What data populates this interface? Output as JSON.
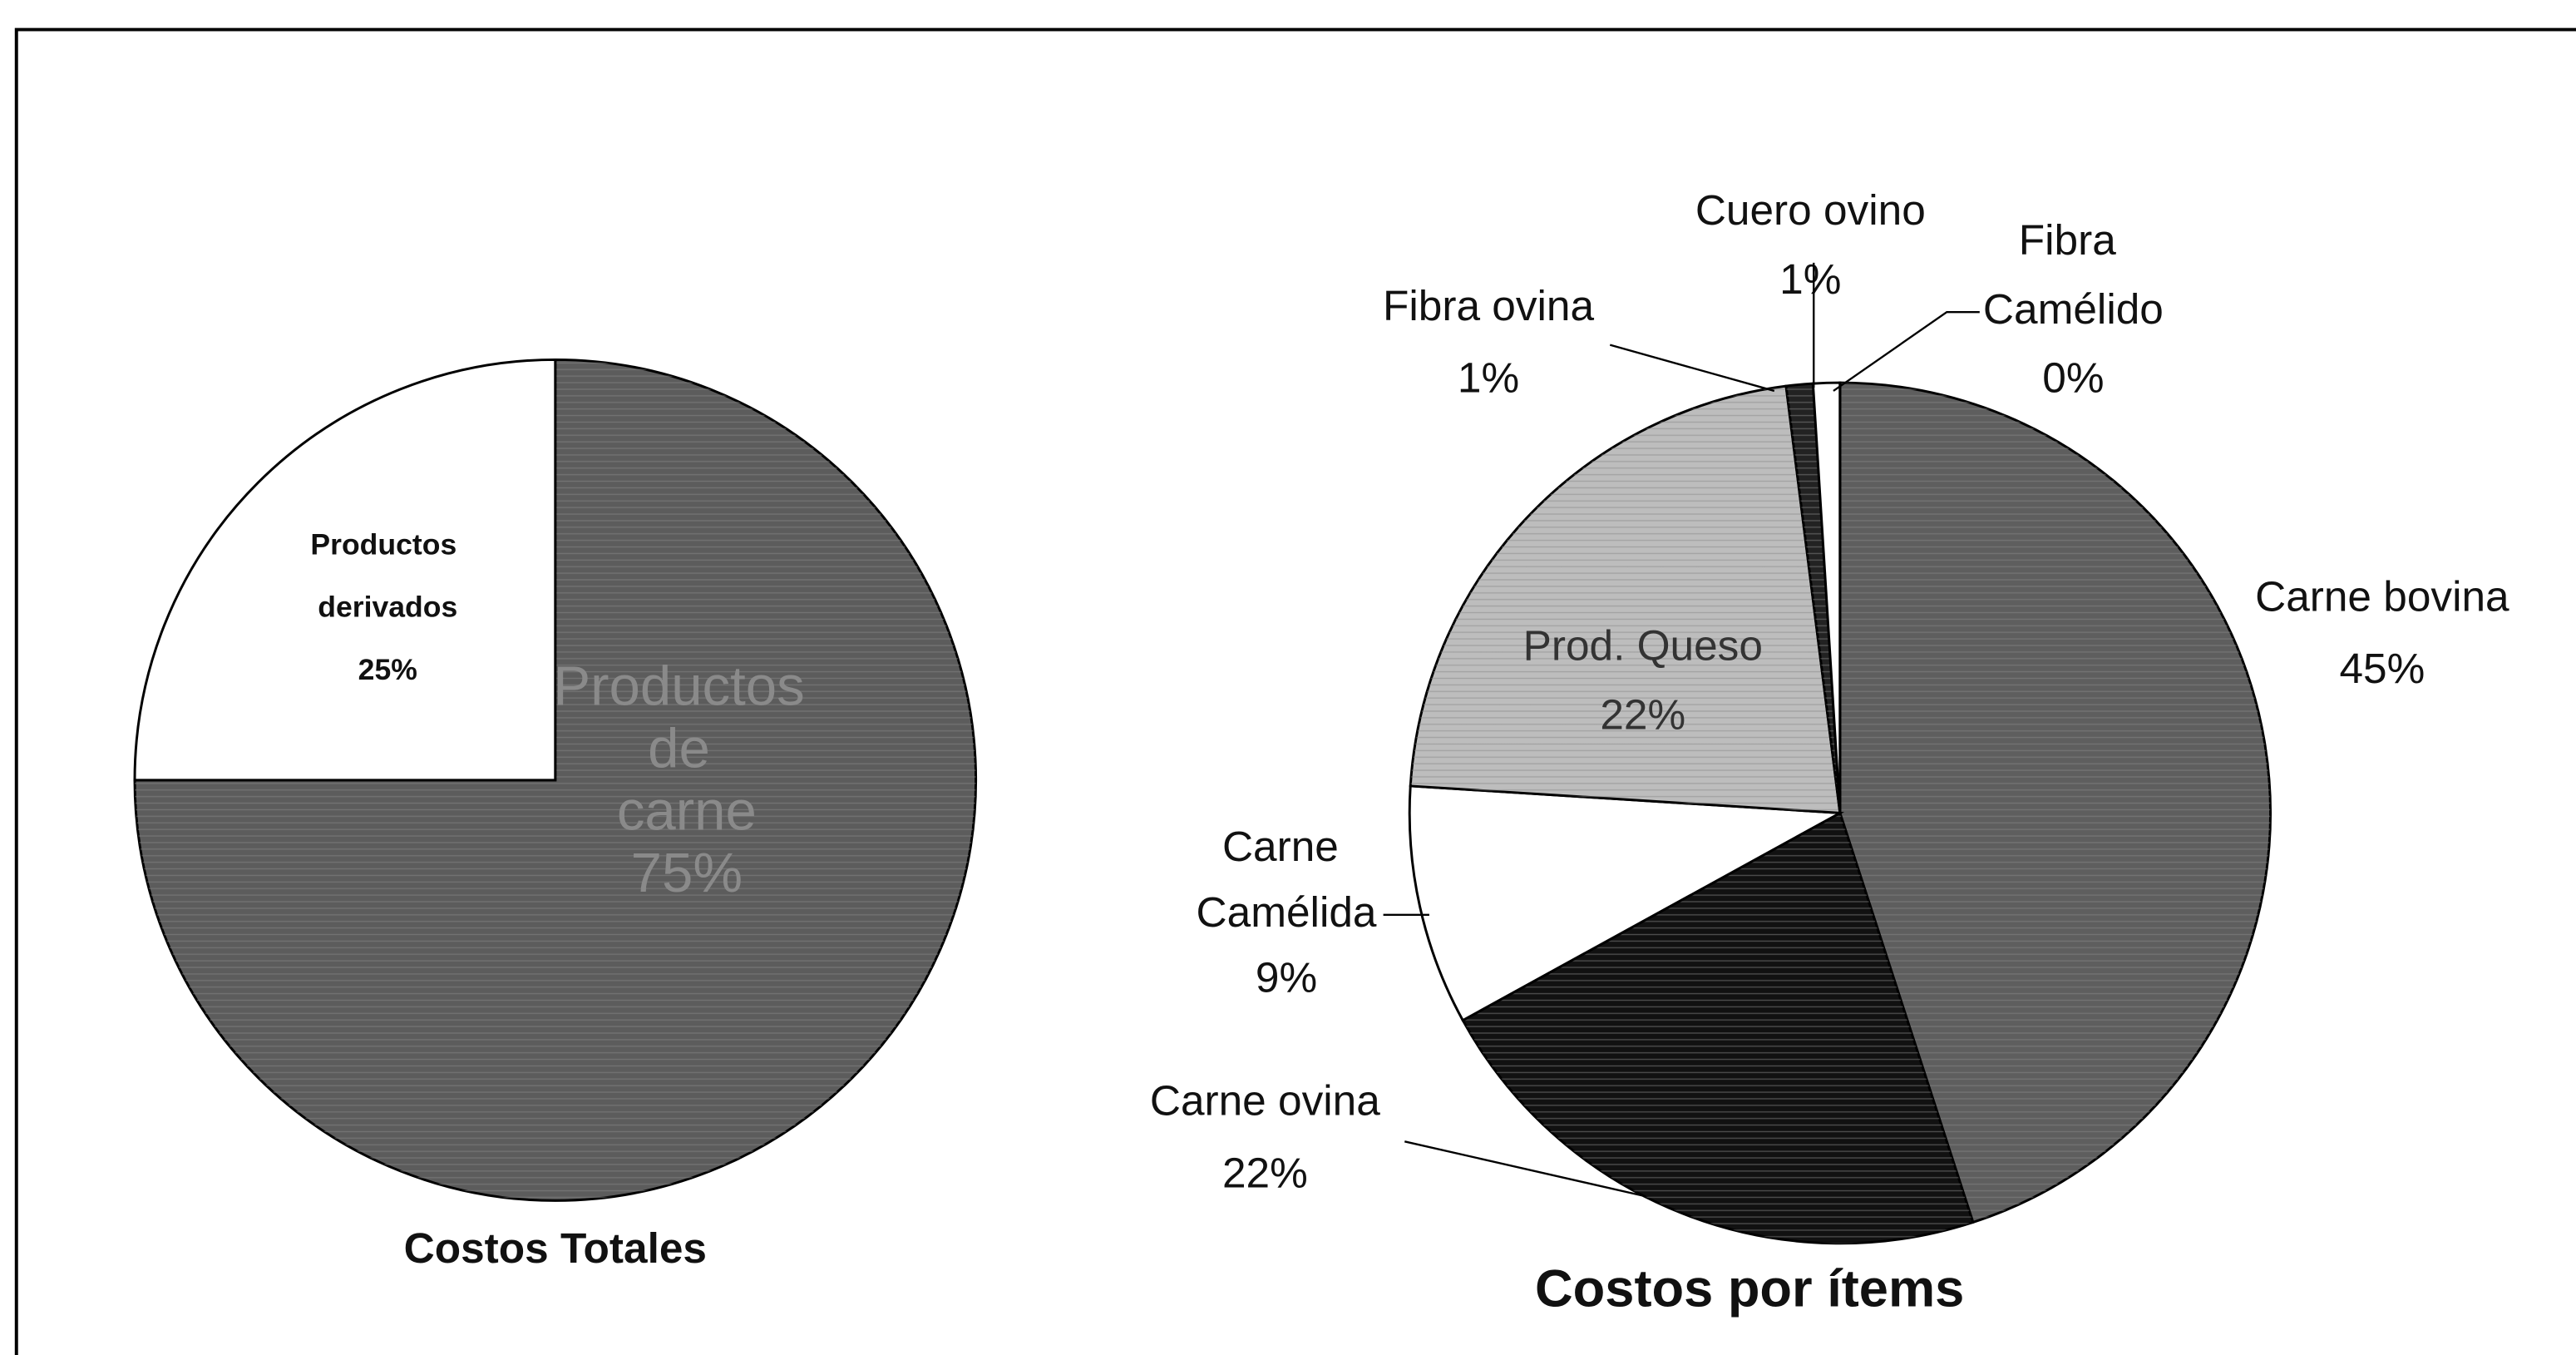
{
  "chart_data": [
    {
      "type": "pie",
      "title": "Costos Totales",
      "categories": [
        "Productos de carne",
        "Productos derivados"
      ],
      "values": [
        75,
        25
      ],
      "value_labels": [
        "75%",
        "25%"
      ],
      "colors": [
        "#5c5c5c",
        "#ffffff"
      ]
    },
    {
      "type": "pie",
      "title": "Costos por ítems",
      "categories": [
        "Carne bovina",
        "Carne ovina",
        "Carne Camélida",
        "Prod. Queso",
        "Fibra ovina",
        "Cuero ovino",
        "Fibra Camélido"
      ],
      "values": [
        45,
        22,
        9,
        22,
        1,
        1,
        0
      ],
      "value_labels": [
        "45%",
        "22%",
        "9%",
        "22%",
        "1%",
        "1%",
        "0%"
      ],
      "colors": [
        "#5e5e5e",
        "#111111",
        "#ffffff",
        "#bdbdbd",
        "#222222",
        "#ffffff",
        "#ffffff"
      ]
    }
  ]
}
